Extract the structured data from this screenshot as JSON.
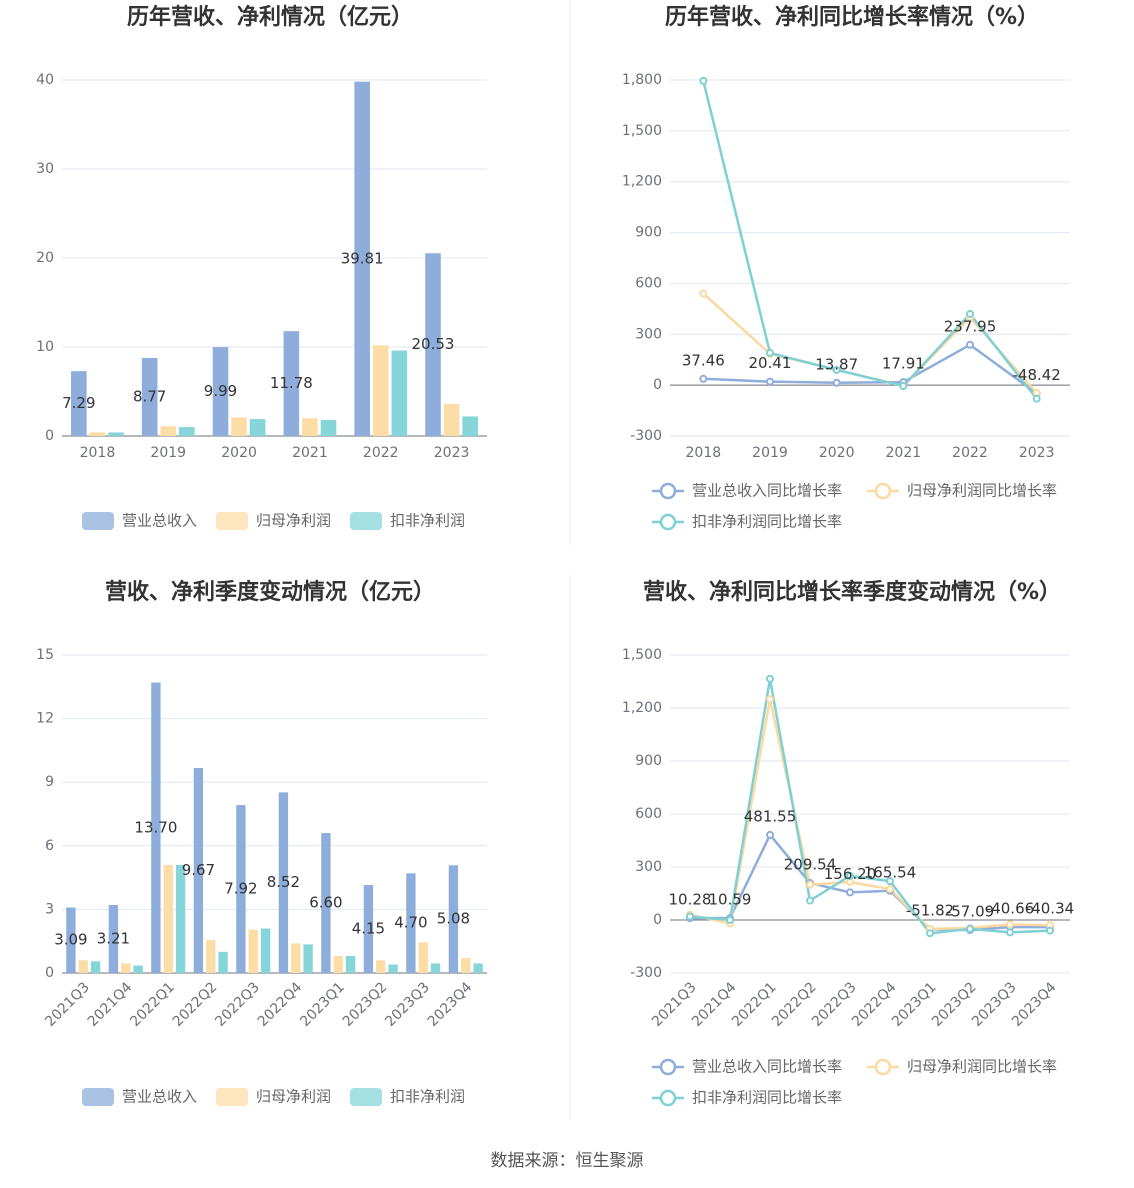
{
  "chart_data": [
    {
      "type": "bar",
      "title": "历年营收、净利情况（亿元）",
      "categories": [
        "2018",
        "2019",
        "2020",
        "2021",
        "2022",
        "2023"
      ],
      "series": [
        {
          "name": "营业总收入",
          "color": "#8eaddb",
          "values": [
            7.29,
            8.77,
            9.99,
            11.78,
            39.81,
            20.53
          ],
          "labels": true
        },
        {
          "name": "归母净利润",
          "color": "#fddda6",
          "values": [
            0.4,
            1.1,
            2.1,
            2.0,
            10.2,
            3.6
          ]
        },
        {
          "name": "扣非净利润",
          "color": "#86d5d9",
          "values": [
            0.4,
            1.0,
            1.9,
            1.8,
            9.6,
            2.2
          ]
        }
      ],
      "ylim": [
        0,
        40
      ],
      "yticks": [
        0,
        10,
        20,
        30,
        40
      ],
      "grid": true
    },
    {
      "type": "line",
      "title": "历年营收、净利同比增长率情况（%）",
      "categories": [
        "2018",
        "2019",
        "2020",
        "2021",
        "2022",
        "2023"
      ],
      "series": [
        {
          "name": "营业总收入同比增长率",
          "color": "#8eaddb",
          "values": [
            37.46,
            20.41,
            13.87,
            17.91,
            237.95,
            -48.42
          ],
          "labels": true
        },
        {
          "name": "归母净利润同比增长率",
          "color": "#fdd9a0",
          "values": [
            540,
            185,
            90,
            -5,
            400,
            -45
          ]
        },
        {
          "name": "扣非净利润同比增长率",
          "color": "#7fd0d5",
          "values": [
            1795,
            190,
            90,
            -5,
            420,
            -80
          ]
        }
      ],
      "ylim": [
        -300,
        1800
      ],
      "yticks": [
        -300,
        0,
        300,
        600,
        900,
        {
          "value": 1200,
          "label": "1,200"
        },
        {
          "value": 1500,
          "label": "1,500"
        },
        {
          "value": 1800,
          "label": "1,800"
        }
      ],
      "grid": true
    },
    {
      "type": "bar",
      "title": "营收、净利季度变动情况（亿元）",
      "categories": [
        "2021Q3",
        "2021Q4",
        "2022Q1",
        "2022Q2",
        "2022Q3",
        "2022Q4",
        "2023Q1",
        "2023Q2",
        "2023Q3",
        "2023Q4"
      ],
      "series": [
        {
          "name": "营业总收入",
          "color": "#8eaddb",
          "values": [
            3.09,
            3.21,
            13.7,
            9.67,
            7.92,
            8.52,
            6.6,
            4.15,
            4.7,
            5.08
          ],
          "value_labels": [
            "3.09",
            "3.21",
            "13.70",
            "9.67",
            "7.92",
            "8.52",
            "6.60",
            "4.15",
            "4.70",
            "5.08"
          ],
          "labels": true
        },
        {
          "name": "归母净利润",
          "color": "#fddda6",
          "values": [
            0.6,
            0.45,
            5.1,
            1.55,
            2.05,
            1.4,
            0.8,
            0.6,
            1.45,
            0.7
          ]
        },
        {
          "name": "扣非净利润",
          "color": "#86d5d9",
          "values": [
            0.55,
            0.35,
            5.1,
            1.0,
            2.1,
            1.35,
            0.8,
            0.4,
            0.45,
            0.45
          ]
        }
      ],
      "ylim": [
        0,
        15
      ],
      "yticks": [
        0,
        3,
        6,
        9,
        12,
        15
      ],
      "grid": true
    },
    {
      "type": "line",
      "title": "营收、净利同比增长率季度变动情况（%）",
      "categories": [
        "2021Q3",
        "2021Q4",
        "2022Q1",
        "2022Q2",
        "2022Q3",
        "2022Q4",
        "2023Q1",
        "2023Q2",
        "2023Q3",
        "2023Q4"
      ],
      "series": [
        {
          "name": "营业总收入同比增长率",
          "color": "#8eaddb",
          "values": [
            10.28,
            10.59,
            481.55,
            209.54,
            156.2,
            165.54,
            -51.82,
            -57.09,
            -40.66,
            -40.34
          ],
          "value_labels": [
            "10.28",
            "10.59",
            "481.55",
            "209.54",
            "156.20",
            "165.54",
            "-51.82",
            "-57.09",
            "-40.66",
            "-40.34"
          ],
          "labels": true
        },
        {
          "name": "归母净利润同比增长率",
          "color": "#fdd9a0",
          "values": [
            30,
            -20,
            1250,
            200,
            215,
            175,
            -50,
            -45,
            -25,
            -30
          ]
        },
        {
          "name": "扣非净利润同比增长率",
          "color": "#7fd0d5",
          "values": [
            20,
            0,
            1365,
            110,
            250,
            220,
            -75,
            -50,
            -70,
            -60
          ]
        }
      ],
      "ylim": [
        -300,
        1500
      ],
      "yticks": [
        -300,
        0,
        300,
        600,
        900,
        {
          "value": 1200,
          "label": "1,200"
        },
        {
          "value": 1500,
          "label": "1,500"
        }
      ],
      "grid": true
    }
  ],
  "source": "数据来源：恒生聚源"
}
